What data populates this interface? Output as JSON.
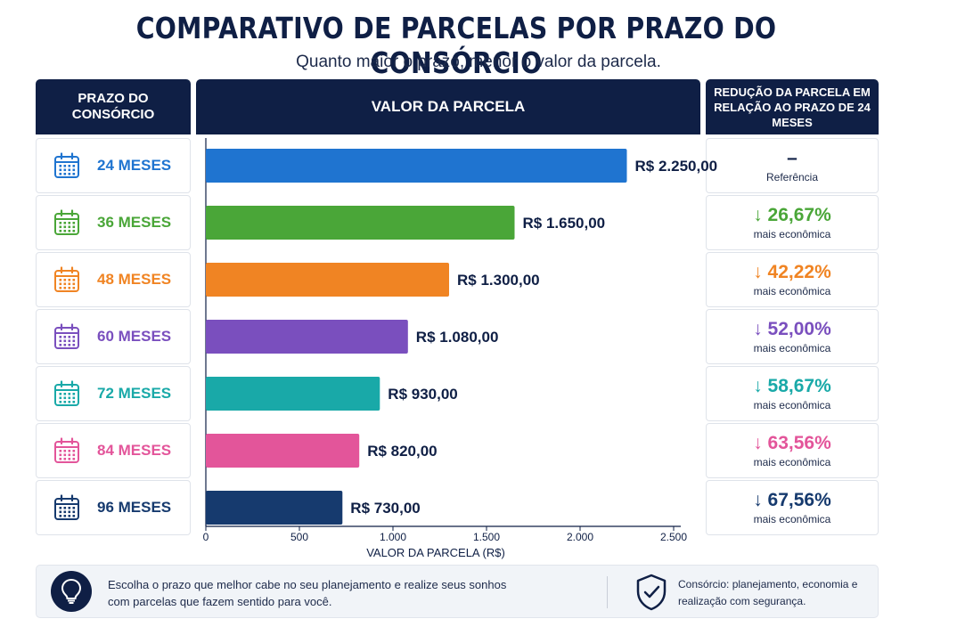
{
  "title": "COMPARATIVO DE PARCELAS POR PRAZO DO CONSÓRCIO",
  "subtitle": "Quanto maior o prazo, menor o valor da parcela.",
  "headers": {
    "prazo": "PRAZO DO CONSÓRCIO",
    "valor": "VALOR DA PARCELA",
    "reducao": "REDUÇÃO DA PARCELA EM RELAÇÃO AO PRAZO DE 24 MESES"
  },
  "rows": [
    {
      "label": "24 MESES",
      "color": "#1f74d0",
      "value_label": "R$ 2.250,00",
      "reduction": "–",
      "reduction_sub": "Referência"
    },
    {
      "label": "36 MESES",
      "color": "#4aa638",
      "value_label": "R$ 1.650,00",
      "reduction": "↓ 26,67%",
      "reduction_sub": "mais econômica"
    },
    {
      "label": "48 MESES",
      "color": "#f08423",
      "value_label": "R$ 1.300,00",
      "reduction": "↓ 42,22%",
      "reduction_sub": "mais econômica"
    },
    {
      "label": "60 MESES",
      "color": "#7a4fbe",
      "value_label": "R$ 1.080,00",
      "reduction": "↓ 52,00%",
      "reduction_sub": "mais econômica"
    },
    {
      "label": "72 MESES",
      "color": "#19a9a8",
      "value_label": "R$ 930,00",
      "reduction": "↓ 58,67%",
      "reduction_sub": "mais econômica"
    },
    {
      "label": "84 MESES",
      "color": "#e3559a",
      "value_label": "R$ 820,00",
      "reduction": "↓ 63,56%",
      "reduction_sub": "mais econômica"
    },
    {
      "label": "96 MESES",
      "color": "#163a6e",
      "value_label": "R$ 730,00",
      "reduction": "↓ 67,56%",
      "reduction_sub": "mais econômica"
    }
  ],
  "chart_data": {
    "type": "bar",
    "orientation": "horizontal",
    "categories": [
      "24 MESES",
      "36 MESES",
      "48 MESES",
      "60 MESES",
      "72 MESES",
      "84 MESES",
      "96 MESES"
    ],
    "values": [
      2250,
      1650,
      1300,
      1080,
      930,
      820,
      730
    ],
    "data_labels": [
      "R$ 2.250,00",
      "R$ 1.650,00",
      "R$ 1.300,00",
      "R$ 1.080,00",
      "R$ 930,00",
      "R$ 820,00",
      "R$ 730,00"
    ],
    "colors": [
      "#1f74d0",
      "#4aa638",
      "#f08423",
      "#7a4fbe",
      "#19a9a8",
      "#e3559a",
      "#163a6e"
    ],
    "xlabel": "VALOR DA PARCELA (R$)",
    "xlim": [
      0,
      2500
    ],
    "xticks": [
      0,
      500,
      1000,
      1500,
      2000,
      2500
    ],
    "xtick_labels": [
      "0",
      "500",
      "1.000",
      "1.500",
      "2.000",
      "2.500"
    ],
    "grid": false
  },
  "footer": {
    "tip": "Escolha o prazo que melhor cabe no seu planejamento e realize seus sonhos com parcelas que fazem sentido para você.",
    "tagline": "Consórcio: planejamento, economia e realização com segurança.",
    "left_icon": "lightbulb-icon",
    "right_icon": "shield-check-icon"
  }
}
